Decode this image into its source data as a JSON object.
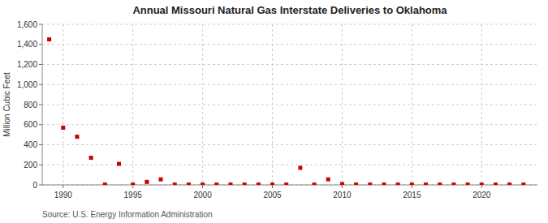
{
  "chart_data": {
    "type": "scatter",
    "title": "Annual Missouri Natural Gas Interstate Deliveries to Oklahoma",
    "ylabel": "Million Cubic Feet",
    "source": "Source: U.S. Energy Information Administration",
    "color": "#cc0000",
    "marker": "square",
    "grid": true,
    "xlim": [
      1988.5,
      2024
    ],
    "ylim": [
      0,
      1600
    ],
    "xticks": [
      1990,
      1995,
      2000,
      2005,
      2010,
      2015,
      2020
    ],
    "yticks": [
      0,
      200,
      400,
      600,
      800,
      {
        "value": 1000,
        "label": "1,000"
      },
      {
        "value": 1200,
        "label": "1,200"
      },
      {
        "value": 1400,
        "label": "1,400"
      },
      {
        "value": 1600,
        "label": "1,600"
      }
    ],
    "x": [
      1989,
      1990,
      1991,
      1992,
      1993,
      1994,
      1995,
      1996,
      1997,
      1998,
      1999,
      2000,
      2001,
      2002,
      2003,
      2004,
      2005,
      2006,
      2007,
      2008,
      2009,
      2010,
      2011,
      2012,
      2013,
      2014,
      2015,
      2016,
      2017,
      2018,
      2019,
      2020,
      2021,
      2022,
      2023
    ],
    "values": [
      1450,
      570,
      480,
      270,
      3,
      210,
      3,
      30,
      55,
      3,
      3,
      3,
      3,
      3,
      3,
      3,
      3,
      3,
      170,
      3,
      55,
      8,
      3,
      3,
      3,
      3,
      3,
      3,
      3,
      3,
      3,
      3,
      3,
      3,
      3
    ]
  }
}
